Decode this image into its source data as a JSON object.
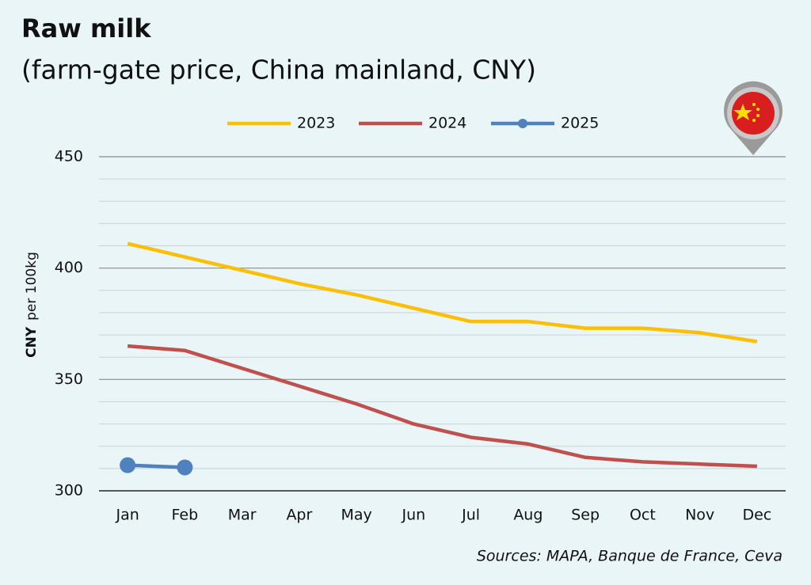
{
  "chart_data": {
    "type": "line",
    "title": "Raw milk",
    "subtitle": "(farm-gate price, China mainland, CNY)",
    "ylabel_unit": "CNY",
    "ylabel": "per 100kg",
    "source": "Sources: MAPA, Banque de France, Ceva",
    "categories": [
      "Jan",
      "Feb",
      "Mar",
      "Apr",
      "May",
      "Jun",
      "Jul",
      "Aug",
      "Sep",
      "Oct",
      "Nov",
      "Dec"
    ],
    "series": [
      {
        "name": "2023",
        "color": "#fcbf05",
        "values": [
          411,
          405,
          399,
          393,
          388,
          382,
          376,
          376,
          373,
          373,
          371,
          367
        ]
      },
      {
        "name": "2024",
        "color": "#c0504d",
        "values": [
          365,
          363,
          355,
          347,
          339,
          330,
          324,
          321,
          315,
          313,
          312,
          311
        ]
      },
      {
        "name": "2025",
        "color": "#4f81bd",
        "marker": "circle",
        "values": [
          311.5,
          310.5,
          null,
          null,
          null,
          null,
          null,
          null,
          null,
          null,
          null,
          null
        ]
      }
    ],
    "ylim": [
      300,
      450
    ],
    "yticks": [
      300,
      350,
      400,
      450
    ],
    "minor_yticks": [
      310,
      320,
      330,
      340,
      360,
      370,
      380,
      390,
      410,
      420,
      430,
      440
    ],
    "grid": true,
    "legend": "top"
  }
}
